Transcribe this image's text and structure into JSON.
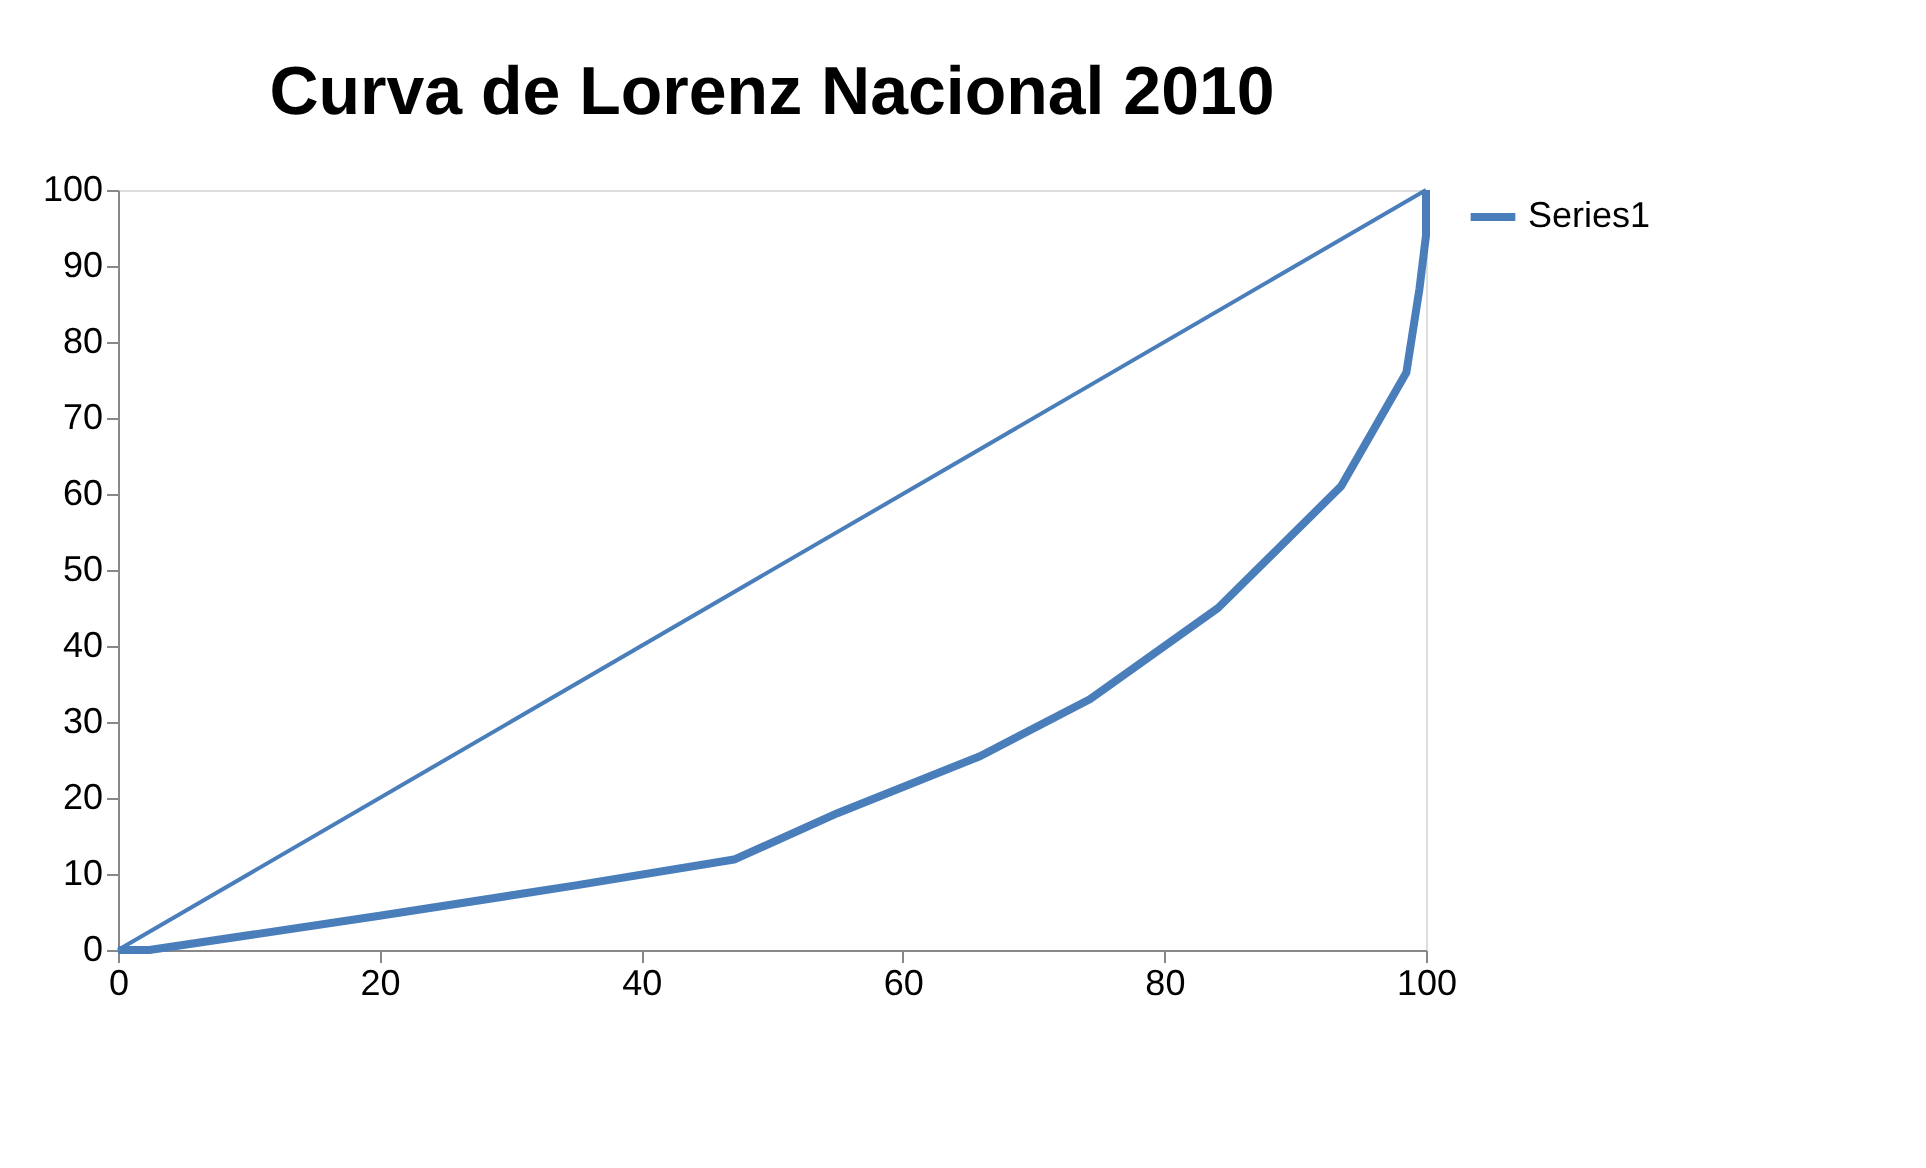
{
  "chart_data": {
    "type": "line",
    "title": "Curva de Lorenz Nacional 2010",
    "series": [
      {
        "name": "Series1",
        "color": "#4a7ebb",
        "x": [
          0,
          2.4,
          20,
          35,
          47.1,
          55,
          65.9,
          74.3,
          84.1,
          93.5,
          98.5,
          99.5,
          100,
          100
        ],
        "values": [
          0,
          0,
          4.5,
          8.5,
          11.9,
          18,
          25.5,
          33,
          45,
          61,
          76,
          87,
          94,
          100
        ]
      },
      {
        "color": "#4a7ebb",
        "x": [
          0,
          100
        ],
        "values": [
          0,
          100
        ]
      }
    ],
    "xlim": [
      0,
      100
    ],
    "xticks": [
      0,
      20,
      40,
      60,
      80,
      100
    ],
    "ylim": [
      0,
      100
    ],
    "yticks": [
      0,
      10,
      20,
      30,
      40,
      50,
      60,
      70,
      80,
      90,
      100
    ],
    "grid": false,
    "legend": "right",
    "marker": "none",
    "line_style": "solid"
  }
}
